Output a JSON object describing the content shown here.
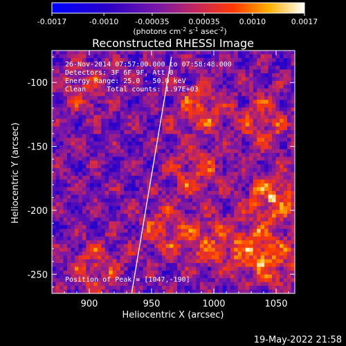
{
  "chart_data": {
    "type": "heatmap",
    "title": "Reconstructed RHESSI Image",
    "xlabel": "Heliocentric X (arcsec)",
    "ylabel": "Heliocentric Y (arcsec)",
    "xlim": [
      870,
      1065
    ],
    "ylim": [
      -265,
      -75
    ],
    "x_ticks": [
      900,
      950,
      1000,
      1050
    ],
    "y_ticks": [
      -100,
      -150,
      -200,
      -250
    ],
    "colorbar": {
      "range": [
        -0.0017,
        0.0017
      ],
      "ticks": [
        "-0.0017",
        "-0.0010",
        "-0.00035",
        "0.00035",
        "0.0010",
        "0.0017"
      ],
      "unit_label": "(photons cm",
      "unit_sup1": "-2",
      "unit_mid": " s",
      "unit_sup2": "-1",
      "unit_end": " asec",
      "unit_sup3": "-2",
      "unit_close": ")"
    },
    "annotations": [
      "26-Nov-2014 07:57:00.000 to 07:58:48.000",
      "Detectors: 3F 6F 9F, Att 0",
      "Energy Range: 25.0 - 50.0 keV",
      "Clean     Total counts: 1.97E+03"
    ],
    "peak_label": "Position of Peak = [1047,-190]",
    "peak": [
      1047,
      -190
    ],
    "limb_line": [
      [
        934,
        -265
      ],
      [
        966,
        -80
      ]
    ],
    "bright_sources": [
      {
        "x": 1047,
        "y": -190,
        "value": 0.0017
      },
      {
        "x": 1030,
        "y": -230,
        "value": 0.0013
      },
      {
        "x": 1040,
        "y": -130,
        "value": 0.0011
      },
      {
        "x": 990,
        "y": -120,
        "value": 0.0012
      },
      {
        "x": 985,
        "y": -170,
        "value": 0.0011
      },
      {
        "x": 995,
        "y": -225,
        "value": 0.0012
      },
      {
        "x": 960,
        "y": -215,
        "value": 0.001
      },
      {
        "x": 905,
        "y": -245,
        "value": 0.0011
      },
      {
        "x": 895,
        "y": -105,
        "value": 0.0009
      },
      {
        "x": 1050,
        "y": -240,
        "value": 0.001
      }
    ]
  },
  "timestamp": "19-May-2022 21:58"
}
